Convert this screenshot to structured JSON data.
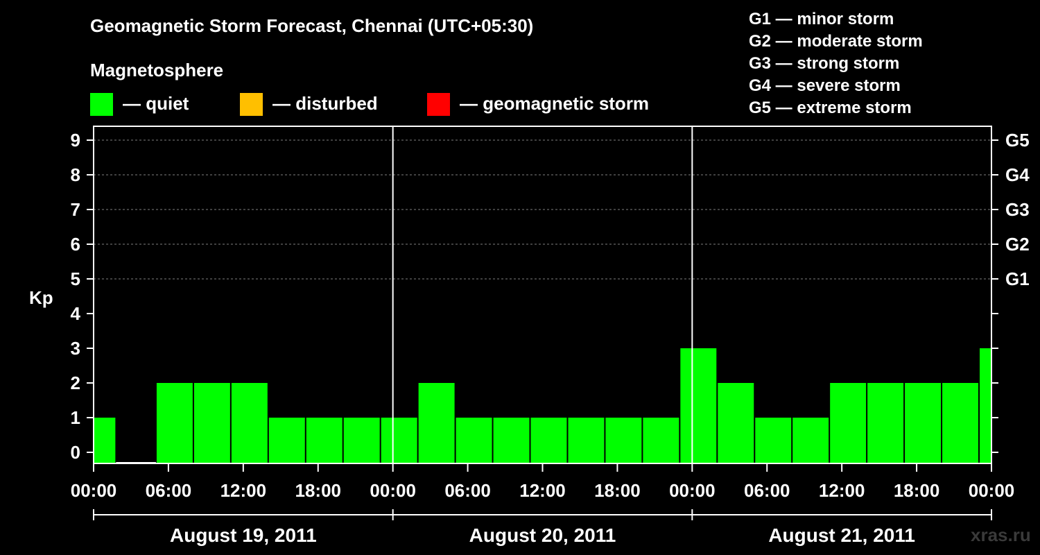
{
  "title": "Geomagnetic Storm Forecast, Chennai (UTC+05:30)",
  "magnetosphere_label": "Magnetosphere",
  "legend": [
    {
      "label": "— quiet",
      "color": "#00ff00"
    },
    {
      "label": "— disturbed",
      "color": "#ffbf00"
    },
    {
      "label": "— geomagnetic storm",
      "color": "#ff0000"
    }
  ],
  "storm_scale": [
    "G1 — minor storm",
    "G2 — moderate storm",
    "G3 — strong storm",
    "G4 — severe storm",
    "G5 — extreme storm"
  ],
  "watermark": "xras.ru",
  "chart_data": {
    "type": "bar",
    "ylabel": "Kp",
    "ylim": [
      0,
      9
    ],
    "yticks": [
      0,
      1,
      2,
      3,
      4,
      5,
      6,
      7,
      8,
      9
    ],
    "right_ticks": [
      {
        "value": 5,
        "label": "G1"
      },
      {
        "value": 6,
        "label": "G2"
      },
      {
        "value": 7,
        "label": "G3"
      },
      {
        "value": 8,
        "label": "G4"
      },
      {
        "value": 9,
        "label": "G5"
      }
    ],
    "xticks": [
      "00:00",
      "06:00",
      "12:00",
      "18:00",
      "00:00",
      "06:00",
      "12:00",
      "18:00",
      "00:00",
      "06:00",
      "12:00",
      "18:00",
      "00:00"
    ],
    "days": [
      "August 19, 2011",
      "August 20, 2011",
      "August 21, 2011"
    ],
    "bar_color": "#00ff00",
    "grid": "dashed horizontal at Kp 5-9",
    "bars": [
      {
        "start_hour": 0,
        "end_hour": 1.8,
        "kp": 1
      },
      {
        "start_hour": 1.8,
        "end_hour": 5,
        "kp": 0
      },
      {
        "start_hour": 5,
        "end_hour": 8,
        "kp": 2
      },
      {
        "start_hour": 8,
        "end_hour": 11,
        "kp": 2
      },
      {
        "start_hour": 11,
        "end_hour": 14,
        "kp": 2
      },
      {
        "start_hour": 14,
        "end_hour": 17,
        "kp": 1
      },
      {
        "start_hour": 17,
        "end_hour": 20,
        "kp": 1
      },
      {
        "start_hour": 20,
        "end_hour": 23,
        "kp": 1
      },
      {
        "start_hour": 23,
        "end_hour": 26,
        "kp": 1
      },
      {
        "start_hour": 26,
        "end_hour": 29,
        "kp": 2
      },
      {
        "start_hour": 29,
        "end_hour": 32,
        "kp": 1
      },
      {
        "start_hour": 32,
        "end_hour": 35,
        "kp": 1
      },
      {
        "start_hour": 35,
        "end_hour": 38,
        "kp": 1
      },
      {
        "start_hour": 38,
        "end_hour": 41,
        "kp": 1
      },
      {
        "start_hour": 41,
        "end_hour": 44,
        "kp": 1
      },
      {
        "start_hour": 44,
        "end_hour": 47,
        "kp": 1
      },
      {
        "start_hour": 47,
        "end_hour": 50,
        "kp": 3
      },
      {
        "start_hour": 50,
        "end_hour": 53,
        "kp": 2
      },
      {
        "start_hour": 53,
        "end_hour": 56,
        "kp": 1
      },
      {
        "start_hour": 56,
        "end_hour": 59,
        "kp": 1
      },
      {
        "start_hour": 59,
        "end_hour": 62,
        "kp": 2
      },
      {
        "start_hour": 62,
        "end_hour": 65,
        "kp": 2
      },
      {
        "start_hour": 65,
        "end_hour": 68,
        "kp": 2
      },
      {
        "start_hour": 68,
        "end_hour": 71,
        "kp": 2
      },
      {
        "start_hour": 71,
        "end_hour": 72,
        "kp": 3
      }
    ]
  }
}
